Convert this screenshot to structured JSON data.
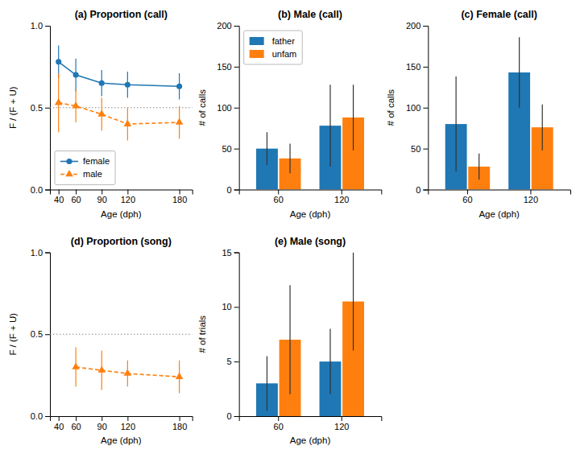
{
  "chart_data": [
    {
      "type": "line",
      "title": "(a) Proportion (call)",
      "xlabel": "Age (dph)",
      "ylabel": "F / (F + U)",
      "xlim": [
        30,
        195
      ],
      "xticks": [
        40,
        60,
        90,
        120,
        180
      ],
      "ylim": [
        0,
        1
      ],
      "yticks": [
        {
          "value": 0,
          "label": "0.0"
        },
        0.5,
        {
          "value": 1,
          "label": "1.0"
        }
      ],
      "x": [
        40,
        60,
        90,
        120,
        180
      ],
      "series": [
        {
          "name": "female",
          "color": "#1f77b4",
          "marker": "circle",
          "line_style": "solid",
          "values": [
            0.78,
            0.7,
            0.65,
            0.64,
            0.63
          ],
          "error_lo": [
            0.1,
            0.1,
            0.08,
            0.08,
            0.08
          ],
          "error_hi": [
            0.1,
            0.1,
            0.08,
            0.08,
            0.08
          ]
        },
        {
          "name": "male",
          "color": "#ff7f0e",
          "marker": "triangle",
          "line_style": "dashed",
          "values": [
            0.53,
            0.51,
            0.46,
            0.4,
            0.41
          ],
          "error_lo": [
            0.18,
            0.1,
            0.1,
            0.1,
            0.1
          ],
          "error_hi": [
            0.18,
            0.1,
            0.1,
            0.1,
            0.1
          ]
        }
      ],
      "hline": 0.5,
      "legend": "lower left"
    },
    {
      "type": "bar",
      "title": "(b) Male (call)",
      "xlabel": "Age (dph)",
      "ylabel": "# of calls",
      "categories": [
        "60",
        "120"
      ],
      "ylim": [
        0,
        200
      ],
      "yticks": [
        0,
        50,
        100,
        150,
        200
      ],
      "series": [
        {
          "name": "father",
          "color": "#1f77b4",
          "values": [
            50,
            78
          ],
          "errors": [
            20,
            50
          ]
        },
        {
          "name": "unfam",
          "color": "#ff7f0e",
          "values": [
            38,
            88
          ],
          "errors": [
            18,
            40
          ]
        }
      ],
      "legend": "upper left"
    },
    {
      "type": "bar",
      "title": "(c) Female (call)",
      "xlabel": "Age (dph)",
      "ylabel": "# of calls",
      "categories": [
        "60",
        "120"
      ],
      "ylim": [
        0,
        200
      ],
      "yticks": [
        0,
        50,
        100,
        150,
        200
      ],
      "series": [
        {
          "color": "#1f77b4",
          "values": [
            80,
            143
          ],
          "errors": [
            58,
            43
          ]
        },
        {
          "color": "#ff7f0e",
          "values": [
            28,
            76
          ],
          "errors": [
            16,
            28
          ]
        }
      ]
    },
    {
      "type": "line",
      "title": "(d) Proportion (song)",
      "xlabel": "Age (dph)",
      "ylabel": "F / (F + U)",
      "xlim": [
        30,
        195
      ],
      "xticks": [
        40,
        60,
        90,
        120,
        180
      ],
      "ylim": [
        0,
        1
      ],
      "yticks": [
        {
          "value": 0,
          "label": "0.0"
        },
        0.5,
        {
          "value": 1,
          "label": "1.0"
        }
      ],
      "x": [
        60,
        90,
        120,
        180
      ],
      "series": [
        {
          "color": "#ff7f0e",
          "marker": "triangle",
          "line_style": "dashed",
          "values": [
            0.3,
            0.28,
            0.26,
            0.24
          ],
          "error_lo": [
            0.12,
            0.12,
            0.08,
            0.1
          ],
          "error_hi": [
            0.12,
            0.12,
            0.08,
            0.1
          ]
        }
      ],
      "hline": 0.5
    },
    {
      "type": "bar",
      "title": "(e) Male (song)",
      "xlabel": "Age (dph)",
      "ylabel": "# of trials",
      "categories": [
        "60",
        "120"
      ],
      "ylim": [
        0,
        15
      ],
      "yticks": [
        0,
        5,
        10,
        15
      ],
      "series": [
        {
          "color": "#1f77b4",
          "values": [
            3,
            5
          ],
          "errors": [
            2.5,
            3
          ]
        },
        {
          "color": "#ff7f0e",
          "values": [
            7,
            10.5
          ],
          "errors": [
            5,
            4.5
          ]
        }
      ]
    }
  ]
}
